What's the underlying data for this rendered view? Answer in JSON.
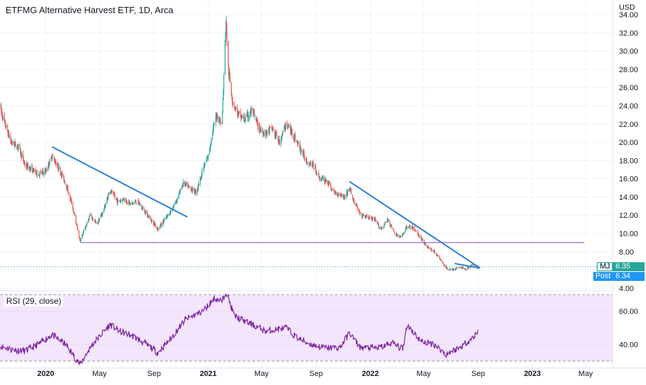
{
  "chart_data": [
    {
      "type": "candlestick",
      "title": "ETFMG Alternative Harvest ETF, 1D, Arca",
      "currency": "USD",
      "yticks": [
        4,
        6,
        8,
        10,
        12,
        14,
        16,
        18,
        20,
        22,
        24,
        26,
        28,
        30,
        32,
        34
      ],
      "ytick_labels": [
        "4.00",
        "",
        "8.00",
        "10.00",
        "12.00",
        "14.00",
        "16.00",
        "18.00",
        "20.00",
        "22.00",
        "24.00",
        "26.00",
        "28.00",
        "30.00",
        "32.00",
        "34.00"
      ],
      "ylim": [
        3.8,
        35.6
      ],
      "xlim": [
        "2019-09-20",
        "2023-07-01"
      ],
      "x_ticks": [
        {
          "date": "2020-01-01",
          "label": "2020",
          "bold": true
        },
        {
          "date": "2020-05-01",
          "label": "May",
          "bold": false
        },
        {
          "date": "2020-09-01",
          "label": "Sep",
          "bold": false
        },
        {
          "date": "2021-01-01",
          "label": "2021",
          "bold": true
        },
        {
          "date": "2021-05-01",
          "label": "May",
          "bold": false
        },
        {
          "date": "2021-09-01",
          "label": "Sep",
          "bold": false
        },
        {
          "date": "2022-01-01",
          "label": "2022",
          "bold": true
        },
        {
          "date": "2022-05-01",
          "label": "May",
          "bold": false
        },
        {
          "date": "2022-09-01",
          "label": "Sep",
          "bold": false
        },
        {
          "date": "2023-01-01",
          "label": "2023",
          "bold": true
        },
        {
          "date": "2023-05-01",
          "label": "May",
          "bold": false
        }
      ],
      "price_path": [
        [
          "2019-09-20",
          23.8
        ],
        [
          "2019-10-01",
          22.0
        ],
        [
          "2019-10-15",
          20.0
        ],
        [
          "2019-11-01",
          19.5
        ],
        [
          "2019-11-15",
          17.5
        ],
        [
          "2019-12-01",
          17.0
        ],
        [
          "2019-12-15",
          16.5
        ],
        [
          "2020-01-01",
          16.8
        ],
        [
          "2020-01-15",
          18.5
        ],
        [
          "2020-02-01",
          17.0
        ],
        [
          "2020-02-15",
          15.5
        ],
        [
          "2020-03-01",
          13.0
        ],
        [
          "2020-03-18",
          9.2
        ],
        [
          "2020-03-25",
          10.0
        ],
        [
          "2020-04-10",
          12.0
        ],
        [
          "2020-04-25",
          11.0
        ],
        [
          "2020-05-10",
          12.5
        ],
        [
          "2020-05-25",
          14.8
        ],
        [
          "2020-06-10",
          13.5
        ],
        [
          "2020-06-25",
          13.8
        ],
        [
          "2020-07-10",
          13.2
        ],
        [
          "2020-07-25",
          13.5
        ],
        [
          "2020-08-10",
          12.5
        ],
        [
          "2020-08-25",
          11.5
        ],
        [
          "2020-09-10",
          10.5
        ],
        [
          "2020-09-25",
          11.5
        ],
        [
          "2020-10-10",
          12.5
        ],
        [
          "2020-10-25",
          14.0
        ],
        [
          "2020-11-05",
          15.5
        ],
        [
          "2020-11-20",
          15.0
        ],
        [
          "2020-12-05",
          14.5
        ],
        [
          "2020-12-20",
          17.0
        ],
        [
          "2021-01-01",
          18.5
        ],
        [
          "2021-01-10",
          21.0
        ],
        [
          "2021-01-20",
          23.0
        ],
        [
          "2021-02-01",
          22.0
        ],
        [
          "2021-02-10",
          33.5
        ],
        [
          "2021-02-15",
          28.0
        ],
        [
          "2021-02-25",
          24.5
        ],
        [
          "2021-03-10",
          23.0
        ],
        [
          "2021-03-25",
          22.5
        ],
        [
          "2021-04-10",
          23.5
        ],
        [
          "2021-04-25",
          21.5
        ],
        [
          "2021-05-10",
          21.0
        ],
        [
          "2021-05-25",
          21.5
        ],
        [
          "2021-06-10",
          20.0
        ],
        [
          "2021-06-25",
          22.0
        ],
        [
          "2021-07-10",
          21.0
        ],
        [
          "2021-07-25",
          19.5
        ],
        [
          "2021-08-10",
          18.0
        ],
        [
          "2021-08-25",
          17.5
        ],
        [
          "2021-09-10",
          16.0
        ],
        [
          "2021-09-25",
          15.8
        ],
        [
          "2021-10-10",
          14.5
        ],
        [
          "2021-10-25",
          14.3
        ],
        [
          "2021-11-05",
          14.0
        ],
        [
          "2021-11-15",
          15.0
        ],
        [
          "2021-11-25",
          13.5
        ],
        [
          "2021-12-10",
          12.0
        ],
        [
          "2021-12-25",
          11.8
        ],
        [
          "2022-01-10",
          11.5
        ],
        [
          "2022-01-25",
          10.5
        ],
        [
          "2022-02-10",
          11.5
        ],
        [
          "2022-02-25",
          10.0
        ],
        [
          "2022-03-10",
          9.5
        ],
        [
          "2022-03-25",
          10.8
        ],
        [
          "2022-04-10",
          10.5
        ],
        [
          "2022-04-25",
          9.5
        ],
        [
          "2022-05-10",
          8.5
        ],
        [
          "2022-05-25",
          8.0
        ],
        [
          "2022-06-10",
          7.0
        ],
        [
          "2022-06-20",
          6.2
        ],
        [
          "2022-07-05",
          6.0
        ],
        [
          "2022-07-20",
          6.3
        ],
        [
          "2022-08-05",
          6.1
        ],
        [
          "2022-08-20",
          6.6
        ],
        [
          "2022-08-28",
          6.3
        ],
        [
          "2022-09-01",
          6.35
        ]
      ],
      "drawings": [
        {
          "type": "trendline",
          "color": "#2a7fd4",
          "from": [
            "2020-01-15",
            19.5
          ],
          "to": [
            "2020-11-15",
            11.8
          ]
        },
        {
          "type": "trendline",
          "color": "#2a7fd4",
          "from": [
            "2021-11-15",
            15.7
          ],
          "to": [
            "2022-09-05",
            6.2
          ]
        },
        {
          "type": "trendline",
          "color": "#2a7fd4",
          "from": [
            "2022-07-10",
            6.7
          ],
          "to": [
            "2022-09-05",
            6.2
          ]
        },
        {
          "type": "hline",
          "color": "#9c6ade",
          "y": 9.0,
          "from": "2020-03-20",
          "to": "2023-04-28"
        }
      ],
      "last_price": {
        "symbol": "MJ",
        "label": "6.35",
        "value": 6.35,
        "color": "#26a69a"
      },
      "post_price": {
        "symbol": "Post",
        "label": "6.34",
        "value": 6.34,
        "color": "#2196f3"
      }
    },
    {
      "type": "line",
      "title": "RSI (29, close)",
      "yticks": [
        40,
        60
      ],
      "ytick_labels": [
        "40.00",
        "60.00"
      ],
      "band": [
        30,
        70
      ],
      "ylim": [
        26,
        72
      ],
      "series": [
        {
          "color": "#7b1fa2",
          "points": [
            [
              "2019-09-20",
              39
            ],
            [
              "2019-10-15",
              37
            ],
            [
              "2019-11-15",
              36
            ],
            [
              "2019-12-15",
              40
            ],
            [
              "2020-01-15",
              46
            ],
            [
              "2020-02-15",
              40
            ],
            [
              "2020-03-18",
              28
            ],
            [
              "2020-04-15",
              40
            ],
            [
              "2020-05-25",
              52
            ],
            [
              "2020-06-15",
              48
            ],
            [
              "2020-07-15",
              45
            ],
            [
              "2020-08-15",
              40
            ],
            [
              "2020-09-10",
              35
            ],
            [
              "2020-10-10",
              44
            ],
            [
              "2020-11-10",
              55
            ],
            [
              "2020-12-20",
              60
            ],
            [
              "2021-01-15",
              68
            ],
            [
              "2021-02-01",
              66
            ],
            [
              "2021-02-10",
              72
            ],
            [
              "2021-03-01",
              57
            ],
            [
              "2021-04-10",
              52
            ],
            [
              "2021-05-10",
              48
            ],
            [
              "2021-06-25",
              50
            ],
            [
              "2021-07-20",
              44
            ],
            [
              "2021-08-20",
              40
            ],
            [
              "2021-09-20",
              38
            ],
            [
              "2021-10-25",
              38
            ],
            [
              "2021-11-15",
              47
            ],
            [
              "2021-12-10",
              38
            ],
            [
              "2022-01-20",
              38
            ],
            [
              "2022-02-20",
              41
            ],
            [
              "2022-03-15",
              37
            ],
            [
              "2022-03-25",
              52
            ],
            [
              "2022-04-25",
              42
            ],
            [
              "2022-05-25",
              40
            ],
            [
              "2022-06-20",
              34
            ],
            [
              "2022-07-20",
              38
            ],
            [
              "2022-08-20",
              44
            ],
            [
              "2022-09-01",
              48
            ]
          ]
        }
      ]
    }
  ]
}
